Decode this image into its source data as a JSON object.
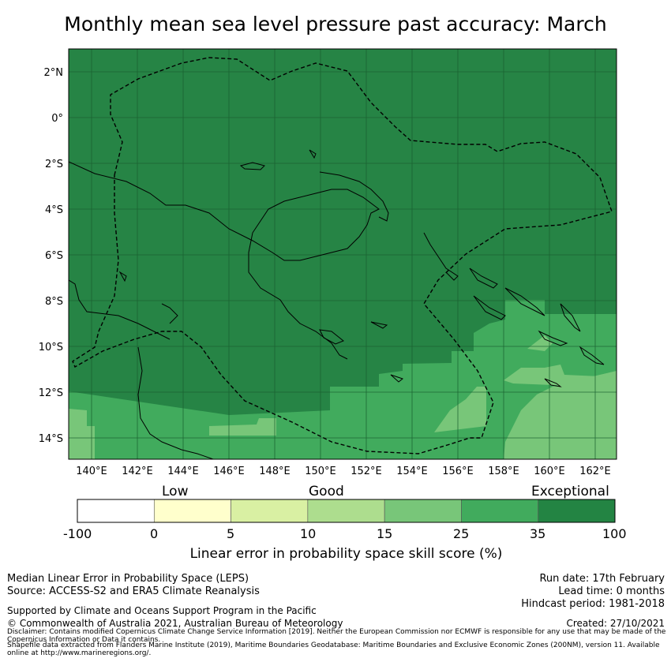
{
  "title": "Monthly mean sea level pressure past accuracy: March",
  "map": {
    "lon_ticks": [
      "140°E",
      "142°E",
      "144°E",
      "146°E",
      "148°E",
      "150°E",
      "152°E",
      "154°E",
      "156°E",
      "158°E",
      "160°E",
      "162°E"
    ],
    "lat_ticks": [
      "2°N",
      "0°",
      "2°S",
      "4°S",
      "6°S",
      "8°S",
      "10°S",
      "12°S",
      "14°S"
    ],
    "lon_range": [
      139,
      163
    ],
    "lat_range": [
      -15,
      3
    ],
    "dominant_color": "#268445"
  },
  "colorbar": {
    "boundaries": [
      "-100",
      "0",
      "5",
      "10",
      "15",
      "25",
      "35",
      "100"
    ],
    "colors": [
      "#ffffff",
      "#ffffcc",
      "#d9f0a3",
      "#addd8e",
      "#78c679",
      "#41ab5d",
      "#238443"
    ],
    "categories": [
      "Low",
      "Good",
      "Exceptional"
    ],
    "label": "Linear error in probability space skill score (%)"
  },
  "info": {
    "left_line1": "Median Linear Error in Probability Space (LEPS)",
    "left_line2": "Source: ACCESS-S2 and ERA5 Climate Reanalysis",
    "right_line1": "Run date: 17th February",
    "right_line2": "Lead time: 0 months",
    "right_line3": "Hindcast period: 1981-2018",
    "support": "Supported by Climate and Oceans Support Program in the Pacific",
    "copyright": "© Commonwealth of Australia 2021, Australian Bureau of Meteorology",
    "created": "Created: 27/10/2021",
    "disclaimer": "Disclaimer: Contains modified Copernicus Climate Change Service Information [2019]. Neither the European Commission nor ECMWF is responsible for any use that may be made of the Copernicus Information or Data it contains.",
    "shapefile": "Shapefile data extracted from Flanders Marine Institute (2019), Maritime Boundaries Geodatabase: Maritime Boundaries and Exclusive Economic Zones (200NM), version 11. Available online at http://www.marineregions.org/."
  }
}
